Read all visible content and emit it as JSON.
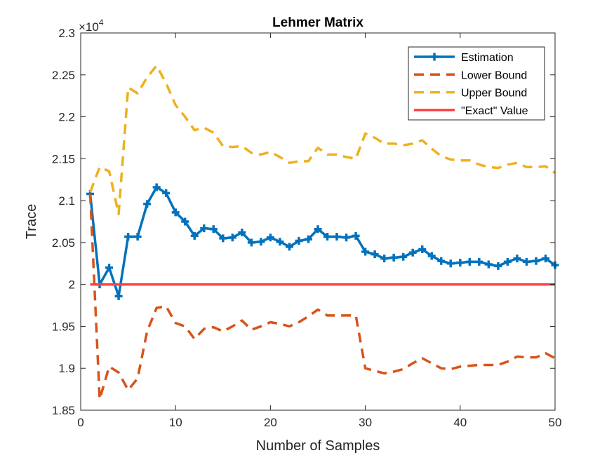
{
  "chart_data": {
    "type": "line",
    "title": "Lehmer Matrix",
    "xlabel": "Number of Samples",
    "ylabel": "Trace",
    "y_exponent_label": "×10",
    "y_exponent_power": "4",
    "xlim": [
      0,
      50
    ],
    "ylim": [
      1.85,
      2.3
    ],
    "x_ticks": [
      0,
      10,
      20,
      30,
      40,
      50
    ],
    "x_tick_labels": [
      "0",
      "10",
      "20",
      "30",
      "40",
      "50"
    ],
    "y_ticks": [
      1.85,
      1.9,
      1.95,
      2.0,
      2.05,
      2.1,
      2.15,
      2.2,
      2.25,
      2.3
    ],
    "y_tick_labels": [
      "1.85",
      "1.9",
      "1.95",
      "2",
      "2.05",
      "2.1",
      "2.15",
      "2.2",
      "2.25",
      "2.3"
    ],
    "grid": false,
    "legend_position": "top-right",
    "x": [
      1,
      2,
      3,
      4,
      5,
      6,
      7,
      8,
      9,
      10,
      11,
      12,
      13,
      14,
      15,
      16,
      17,
      18,
      19,
      20,
      21,
      22,
      23,
      24,
      25,
      26,
      27,
      28,
      29,
      30,
      31,
      32,
      33,
      34,
      35,
      36,
      37,
      38,
      39,
      40,
      41,
      42,
      43,
      44,
      45,
      46,
      47,
      48,
      49,
      50
    ],
    "series": [
      {
        "name": "Estimation",
        "color": "#0072BD",
        "style": "solid-plus",
        "values": [
          2.108,
          2.0,
          2.02,
          1.986,
          2.057,
          2.057,
          2.096,
          2.116,
          2.109,
          2.086,
          2.075,
          2.058,
          2.067,
          2.066,
          2.055,
          2.056,
          2.062,
          2.05,
          2.051,
          2.056,
          2.051,
          2.045,
          2.052,
          2.054,
          2.066,
          2.057,
          2.057,
          2.056,
          2.058,
          2.039,
          2.036,
          2.031,
          2.032,
          2.033,
          2.038,
          2.042,
          2.034,
          2.028,
          2.025,
          2.026,
          2.027,
          2.027,
          2.024,
          2.022,
          2.027,
          2.031,
          2.027,
          2.028,
          2.031,
          2.023
        ]
      },
      {
        "name": "Lower Bound",
        "color": "#D95319",
        "style": "dashed",
        "values": [
          2.108,
          1.863,
          1.902,
          1.895,
          1.874,
          1.888,
          1.944,
          1.972,
          1.974,
          1.954,
          1.95,
          1.935,
          1.947,
          1.949,
          1.944,
          1.95,
          1.957,
          1.946,
          1.95,
          1.955,
          1.953,
          1.95,
          1.955,
          1.962,
          1.97,
          1.963,
          1.963,
          1.963,
          1.963,
          1.9,
          1.897,
          1.894,
          1.896,
          1.899,
          1.906,
          1.912,
          1.906,
          1.9,
          1.899,
          1.902,
          1.903,
          1.904,
          1.904,
          1.904,
          1.908,
          1.914,
          1.913,
          1.913,
          1.918,
          1.912
        ]
      },
      {
        "name": "Upper Bound",
        "color": "#EDB120",
        "style": "dashed",
        "values": [
          2.11,
          2.14,
          2.135,
          2.084,
          2.235,
          2.228,
          2.247,
          2.261,
          2.24,
          2.214,
          2.2,
          2.184,
          2.187,
          2.181,
          2.165,
          2.164,
          2.165,
          2.157,
          2.155,
          2.158,
          2.152,
          2.145,
          2.147,
          2.147,
          2.163,
          2.155,
          2.155,
          2.152,
          2.15,
          2.18,
          2.175,
          2.168,
          2.168,
          2.166,
          2.168,
          2.172,
          2.162,
          2.153,
          2.149,
          2.148,
          2.148,
          2.143,
          2.14,
          2.139,
          2.143,
          2.145,
          2.14,
          2.14,
          2.141,
          2.133
        ]
      },
      {
        "name": "\"Exact\" Value",
        "color": "#FF4040",
        "style": "solid",
        "values": [
          2.0,
          2.0,
          2.0,
          2.0,
          2.0,
          2.0,
          2.0,
          2.0,
          2.0,
          2.0,
          2.0,
          2.0,
          2.0,
          2.0,
          2.0,
          2.0,
          2.0,
          2.0,
          2.0,
          2.0,
          2.0,
          2.0,
          2.0,
          2.0,
          2.0,
          2.0,
          2.0,
          2.0,
          2.0,
          2.0,
          2.0,
          2.0,
          2.0,
          2.0,
          2.0,
          2.0,
          2.0,
          2.0,
          2.0,
          2.0,
          2.0,
          2.0,
          2.0,
          2.0,
          2.0,
          2.0,
          2.0,
          2.0,
          2.0,
          2.0
        ]
      }
    ]
  }
}
